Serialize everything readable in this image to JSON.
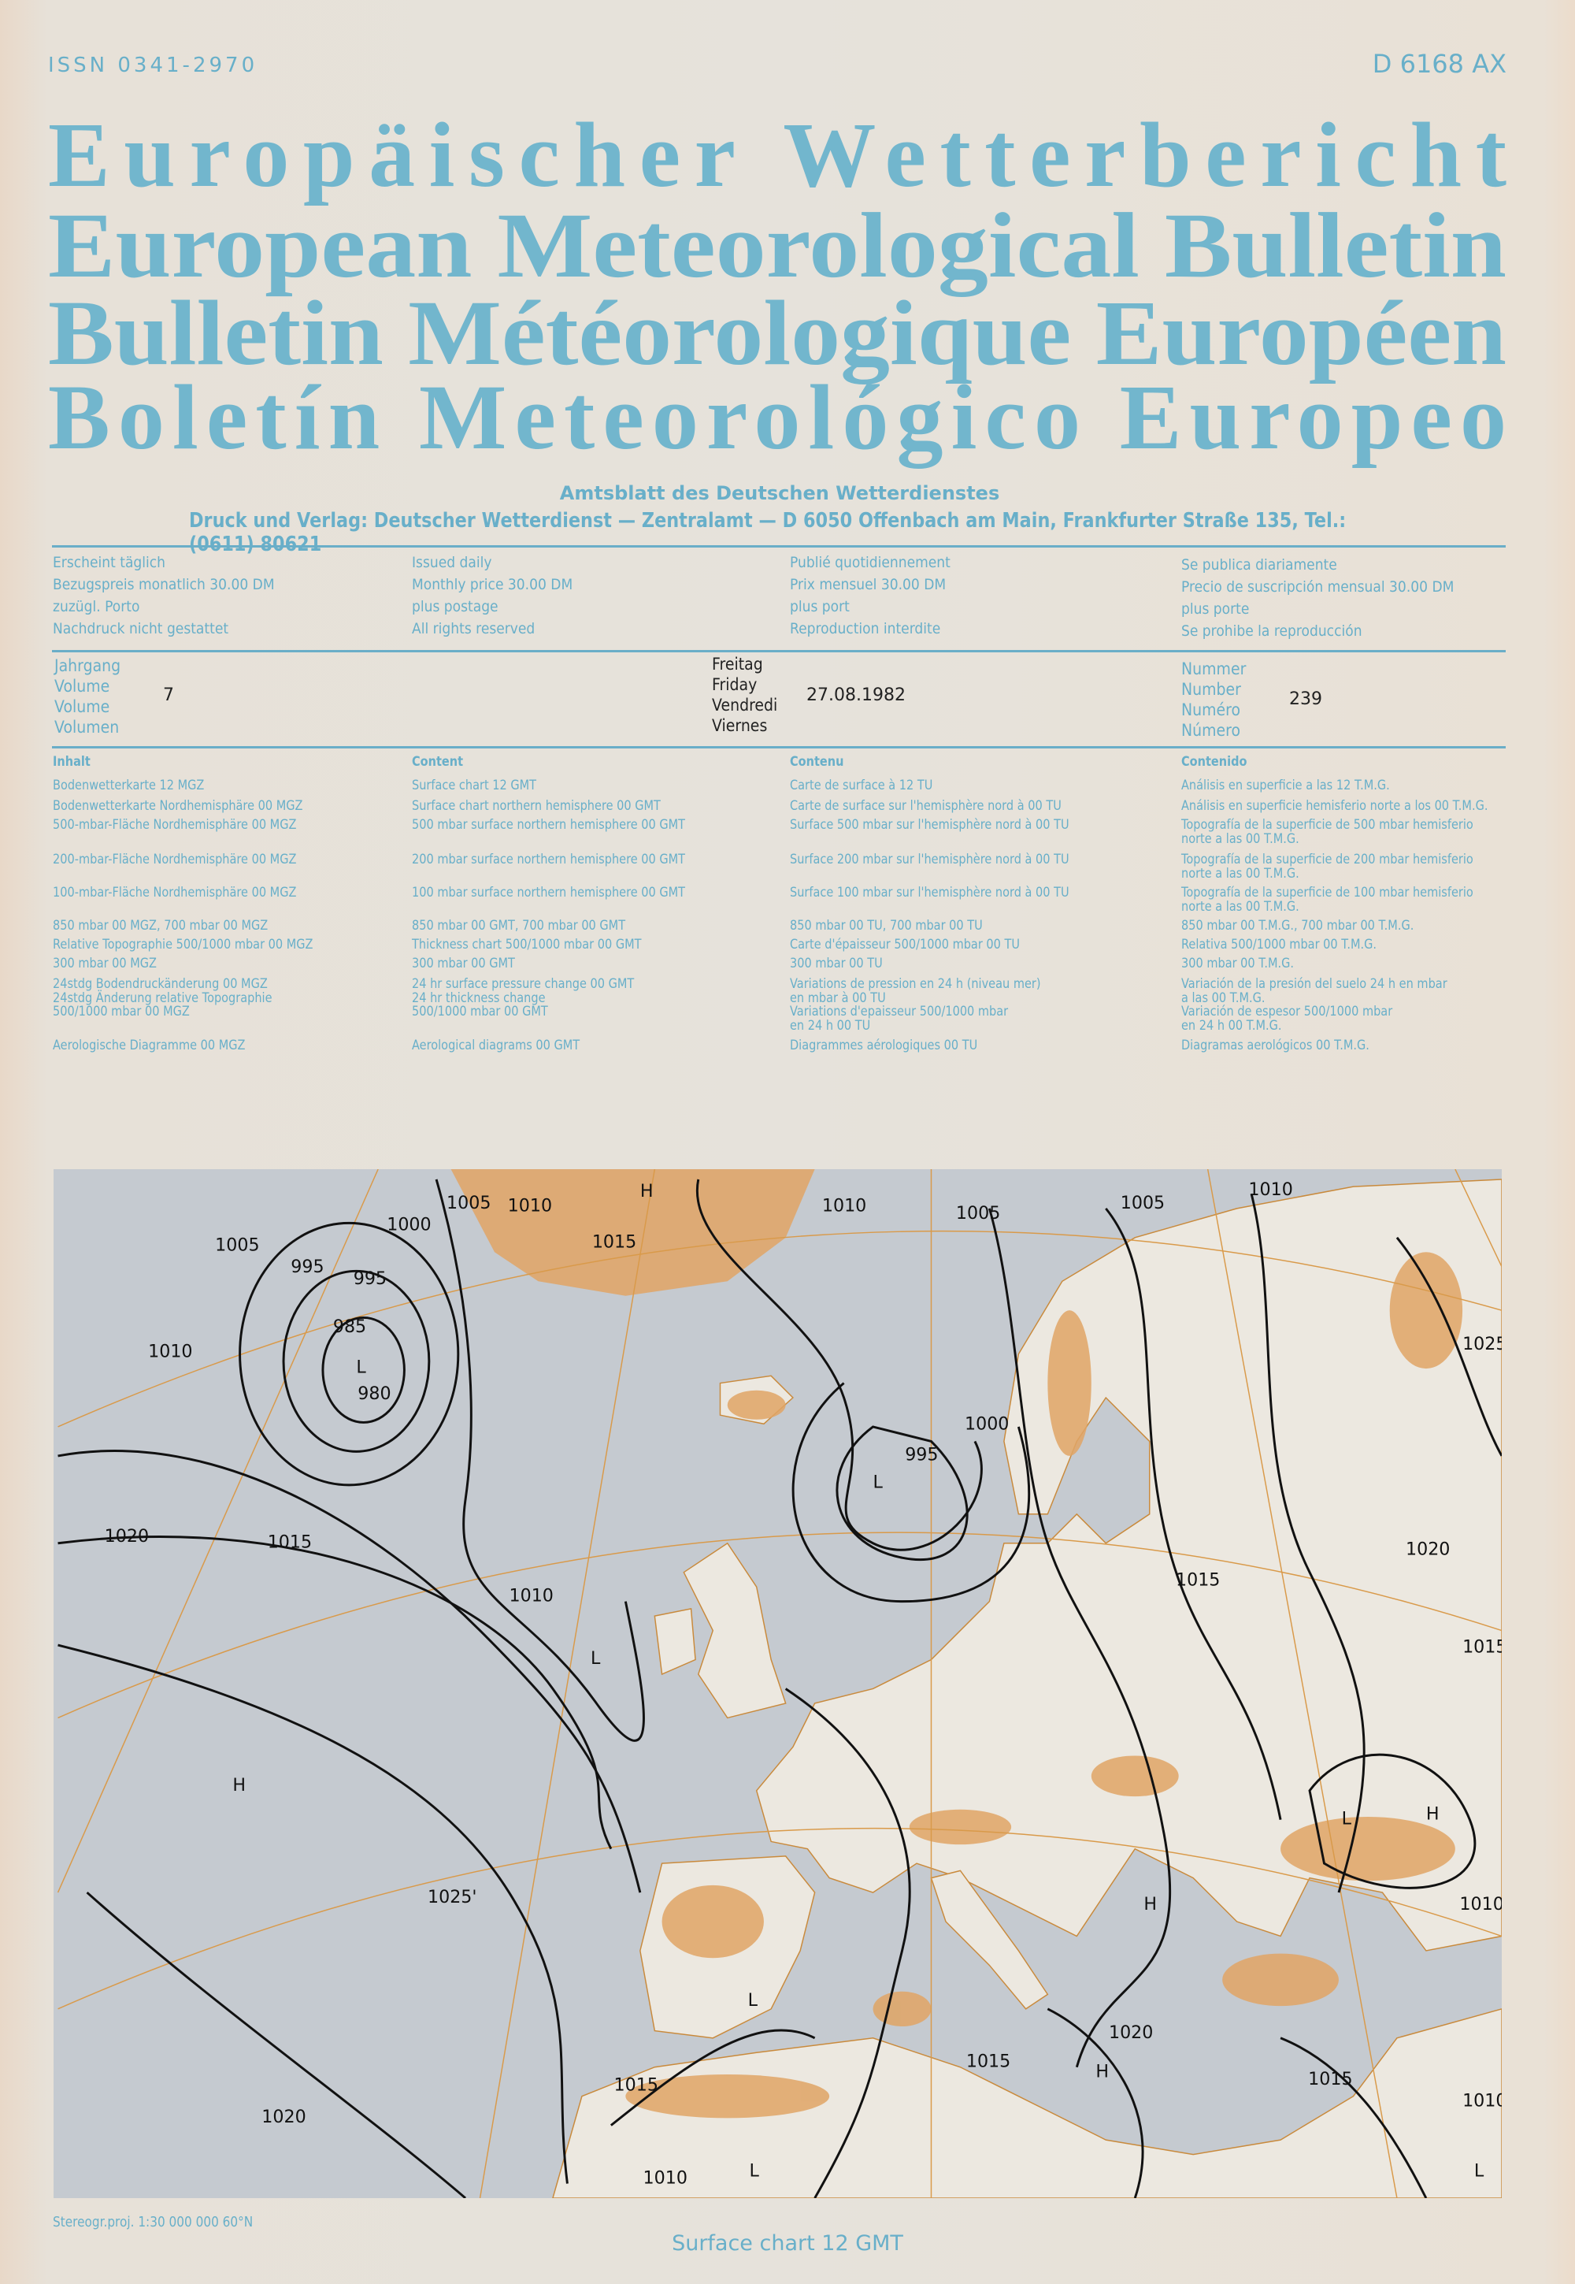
{
  "header": {
    "issn": "ISSN 0341-2970",
    "code": "D 6168 AX",
    "titles": [
      "Europäischer Wetterbericht",
      "European Meteorological Bulletin",
      "Bulletin Météorologique Européen",
      "Boletín Meteorológico Europeo"
    ],
    "official": "Amtsblatt des Deutschen Wetterdienstes",
    "publisher": "Druck und Verlag: Deutscher Wetterdienst — Zentralamt — D 6050 Offenbach am Main, Frankfurter Straße 135, Tel.: (0611) 80621"
  },
  "info": [
    "Erscheint täglich\nBezugspreis monatlich 30.00 DM\nzuzügl. Porto\nNachdruck nicht gestattet",
    "Issued daily\nMonthly price 30.00 DM\nplus postage\nAll rights reserved",
    "Publié quotidiennement\nPrix mensuel 30.00 DM\nplus port\nReproduction interdite",
    "Se publica diariamente\nPrecio de suscripción mensual 30.00 DM\nplus porte\nSe prohibe la reproducción"
  ],
  "issue": {
    "volume_labels": "Jahrgang\nVolume\nVolume\nVolumen",
    "volume": "7",
    "day_labels": "Freitag\nFriday\nVendredi\nViernes",
    "date": "27.08.1982",
    "number_labels": "Nummer\nNumber\nNuméro\nNúmero",
    "number": "239"
  },
  "contents": {
    "headers": [
      "Inhalt",
      "Content",
      "Contenu",
      "Contenido"
    ],
    "rows": [
      [
        "Bodenwetterkarte 12 MGZ",
        "Surface chart 12 GMT",
        "Carte de surface à 12 TU",
        "Análisis en superficie a las 12 T.M.G."
      ],
      [
        "Bodenwetterkarte Nordhemisphäre 00 MGZ",
        "Surface chart northern hemisphere 00 GMT",
        "Carte de surface sur l'hemisphère nord à 00 TU",
        "Análisis en superficie hemisferio norte a los 00 T.M.G."
      ],
      [
        "500-mbar-Fläche Nordhemisphäre 00 MGZ",
        "500 mbar surface northern hemisphere 00 GMT",
        "Surface 500 mbar sur l'hemisphère nord à 00 TU",
        "Topografía de la superficie de 500 mbar hemisferio\nnorte a las 00 T.M.G."
      ],
      [
        "200-mbar-Fläche Nordhemisphäre 00 MGZ",
        "200 mbar surface northern hemisphere 00 GMT",
        "Surface 200 mbar sur l'hemisphère nord à 00 TU",
        "Topografía de la superficie de 200 mbar hemisferio\nnorte a las 00 T.M.G."
      ],
      [
        "100-mbar-Fläche Nordhemisphäre 00 MGZ",
        "100 mbar surface northern hemisphere 00 GMT",
        "Surface 100 mbar sur l'hemisphère nord à 00 TU",
        "Topografía de la superficie de 100 mbar hemisferio\nnorte a las 00 T.M.G."
      ],
      [
        "850 mbar 00 MGZ, 700 mbar 00 MGZ",
        "850 mbar 00 GMT, 700 mbar 00 GMT",
        "850 mbar 00 TU, 700 mbar 00 TU",
        "850 mbar 00 T.M.G., 700 mbar 00 T.M.G."
      ],
      [
        "Relative Topographie 500/1000 mbar 00 MGZ",
        "Thickness chart 500/1000 mbar 00 GMT",
        "Carte d'épaisseur 500/1000 mbar 00 TU",
        "Relativa 500/1000 mbar 00 T.M.G."
      ],
      [
        "300 mbar 00 MGZ",
        "300 mbar 00 GMT",
        "300 mbar 00 TU",
        "300 mbar 00 T.M.G."
      ],
      [
        "24stdg Bodendruckänderung 00 MGZ\n24stdg Änderung relative Topographie\n500/1000 mbar 00 MGZ",
        "24 hr surface pressure change 00 GMT\n24 hr thickness change\n500/1000 mbar 00 GMT",
        "Variations de pression en 24 h (niveau mer)\nen mbar à 00 TU\nVariations d'epaisseur 500/1000 mbar\nen 24 h 00 TU",
        "Variación de la presión del suelo 24 h en mbar\na las 00 T.M.G.\nVariación de espesor 500/1000 mbar\nen 24 h 00 T.M.G."
      ],
      [
        "Aerologische Diagramme 00 MGZ",
        "Aerological diagrams 00 GMT",
        "Diagrammes aérologiques 00 TU",
        "Diagramas aerológicos 00 T.M.G."
      ]
    ]
  },
  "map": {
    "isobar_labels": [
      "1005",
      "995",
      "995",
      "985",
      "980",
      "1010",
      "1005",
      "1010",
      "1000",
      "H",
      "1015",
      "1010",
      "1005",
      "1005",
      "1010",
      "1025",
      "1000",
      "995",
      "L",
      "1020",
      "1015",
      "1010",
      "L",
      "H",
      "1025'",
      "1020",
      "1015",
      "1015",
      "H",
      "L",
      "H",
      "1010",
      "1020",
      "H",
      "1015",
      "1015",
      "1020",
      "1010",
      "L",
      "1015",
      "1010",
      "L",
      "L",
      "L"
    ],
    "colors": {
      "sea": "#c5cad0",
      "land": "#ece8e0",
      "terrain": "#e0a565",
      "border": "#d4903a",
      "isobar": "#111111"
    },
    "projection": "Stereogr.proj. 1:30 000 000   60°N"
  },
  "caption": "Surface chart  12 GMT"
}
